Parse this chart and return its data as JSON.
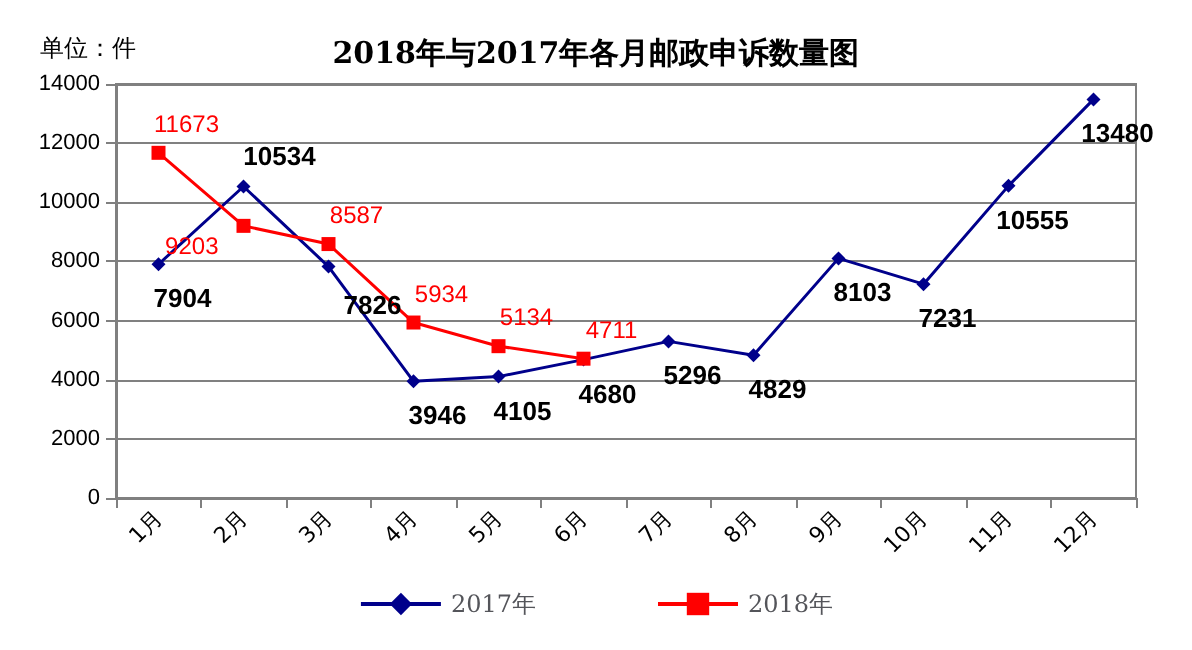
{
  "chart_data": {
    "type": "line",
    "title": "2018年与2017年各月邮政申诉数量图",
    "annotations": [
      "单位：件"
    ],
    "categories": [
      "1月",
      "2月",
      "3月",
      "4月",
      "5月",
      "6月",
      "7月",
      "8月",
      "9月",
      "10月",
      "11月",
      "12月"
    ],
    "series": [
      {
        "name": "2017年",
        "color": "#00008b",
        "marker": "diamond",
        "values": [
          7904,
          10534,
          7826,
          3946,
          4105,
          4680,
          5296,
          4829,
          8103,
          7231,
          10555,
          13480
        ]
      },
      {
        "name": "2018年",
        "color": "#ff0000",
        "marker": "square",
        "values": [
          11673,
          9203,
          8587,
          5934,
          5134,
          4711,
          null,
          null,
          null,
          null,
          null,
          null
        ]
      }
    ],
    "ylim": [
      0,
      14000
    ],
    "yticks": [
      0,
      2000,
      4000,
      6000,
      8000,
      10000,
      12000,
      14000
    ],
    "grid": "y",
    "legend": "bottom",
    "data_labels": true,
    "line_style": "solid"
  }
}
